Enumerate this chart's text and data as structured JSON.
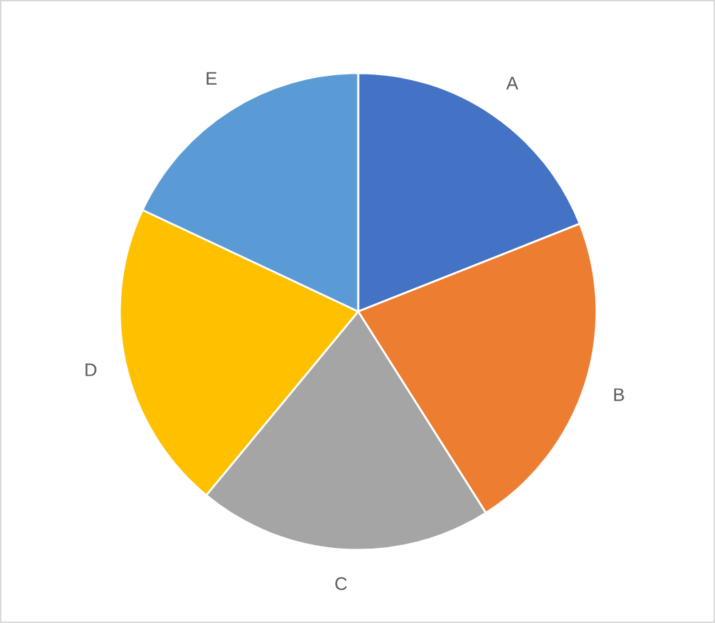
{
  "chart_data": {
    "type": "pie",
    "categories": [
      "A",
      "B",
      "C",
      "D",
      "E"
    ],
    "values": [
      19,
      22,
      20,
      21,
      18
    ],
    "colors": [
      "#4472c4",
      "#ed7d31",
      "#a5a5a5",
      "#ffc000",
      "#5b9bd5"
    ]
  }
}
